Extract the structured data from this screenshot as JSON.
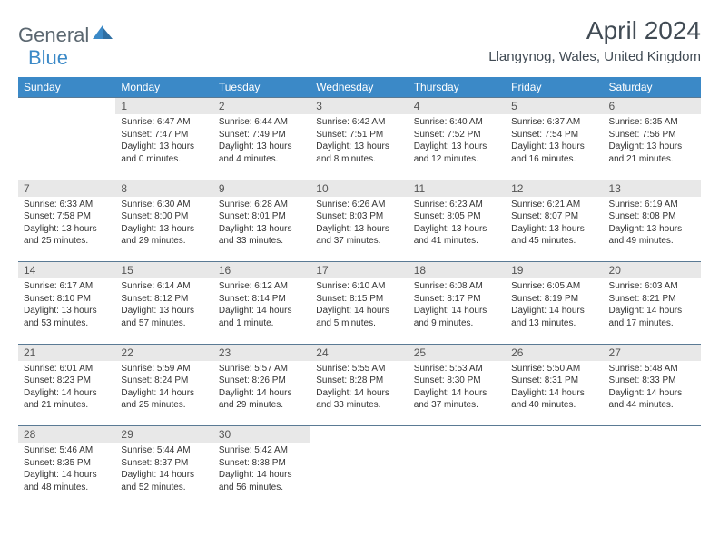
{
  "logo": {
    "part1": "General",
    "part2": "Blue"
  },
  "title": "April 2024",
  "location": "Llangynog, Wales, United Kingdom",
  "colors": {
    "header_bg": "#3b89c7",
    "header_text": "#ffffff",
    "daynum_bg": "#e8e8e8",
    "border": "#5a7a94",
    "logo_gray": "#5b6770",
    "logo_blue": "#3b89c7",
    "title_color": "#414b54"
  },
  "weekdays": [
    "Sunday",
    "Monday",
    "Tuesday",
    "Wednesday",
    "Thursday",
    "Friday",
    "Saturday"
  ],
  "weeks": [
    [
      {
        "n": "",
        "sr": "",
        "ss": "",
        "dl": ""
      },
      {
        "n": "1",
        "sr": "Sunrise: 6:47 AM",
        "ss": "Sunset: 7:47 PM",
        "dl": "Daylight: 13 hours and 0 minutes."
      },
      {
        "n": "2",
        "sr": "Sunrise: 6:44 AM",
        "ss": "Sunset: 7:49 PM",
        "dl": "Daylight: 13 hours and 4 minutes."
      },
      {
        "n": "3",
        "sr": "Sunrise: 6:42 AM",
        "ss": "Sunset: 7:51 PM",
        "dl": "Daylight: 13 hours and 8 minutes."
      },
      {
        "n": "4",
        "sr": "Sunrise: 6:40 AM",
        "ss": "Sunset: 7:52 PM",
        "dl": "Daylight: 13 hours and 12 minutes."
      },
      {
        "n": "5",
        "sr": "Sunrise: 6:37 AM",
        "ss": "Sunset: 7:54 PM",
        "dl": "Daylight: 13 hours and 16 minutes."
      },
      {
        "n": "6",
        "sr": "Sunrise: 6:35 AM",
        "ss": "Sunset: 7:56 PM",
        "dl": "Daylight: 13 hours and 21 minutes."
      }
    ],
    [
      {
        "n": "7",
        "sr": "Sunrise: 6:33 AM",
        "ss": "Sunset: 7:58 PM",
        "dl": "Daylight: 13 hours and 25 minutes."
      },
      {
        "n": "8",
        "sr": "Sunrise: 6:30 AM",
        "ss": "Sunset: 8:00 PM",
        "dl": "Daylight: 13 hours and 29 minutes."
      },
      {
        "n": "9",
        "sr": "Sunrise: 6:28 AM",
        "ss": "Sunset: 8:01 PM",
        "dl": "Daylight: 13 hours and 33 minutes."
      },
      {
        "n": "10",
        "sr": "Sunrise: 6:26 AM",
        "ss": "Sunset: 8:03 PM",
        "dl": "Daylight: 13 hours and 37 minutes."
      },
      {
        "n": "11",
        "sr": "Sunrise: 6:23 AM",
        "ss": "Sunset: 8:05 PM",
        "dl": "Daylight: 13 hours and 41 minutes."
      },
      {
        "n": "12",
        "sr": "Sunrise: 6:21 AM",
        "ss": "Sunset: 8:07 PM",
        "dl": "Daylight: 13 hours and 45 minutes."
      },
      {
        "n": "13",
        "sr": "Sunrise: 6:19 AM",
        "ss": "Sunset: 8:08 PM",
        "dl": "Daylight: 13 hours and 49 minutes."
      }
    ],
    [
      {
        "n": "14",
        "sr": "Sunrise: 6:17 AM",
        "ss": "Sunset: 8:10 PM",
        "dl": "Daylight: 13 hours and 53 minutes."
      },
      {
        "n": "15",
        "sr": "Sunrise: 6:14 AM",
        "ss": "Sunset: 8:12 PM",
        "dl": "Daylight: 13 hours and 57 minutes."
      },
      {
        "n": "16",
        "sr": "Sunrise: 6:12 AM",
        "ss": "Sunset: 8:14 PM",
        "dl": "Daylight: 14 hours and 1 minute."
      },
      {
        "n": "17",
        "sr": "Sunrise: 6:10 AM",
        "ss": "Sunset: 8:15 PM",
        "dl": "Daylight: 14 hours and 5 minutes."
      },
      {
        "n": "18",
        "sr": "Sunrise: 6:08 AM",
        "ss": "Sunset: 8:17 PM",
        "dl": "Daylight: 14 hours and 9 minutes."
      },
      {
        "n": "19",
        "sr": "Sunrise: 6:05 AM",
        "ss": "Sunset: 8:19 PM",
        "dl": "Daylight: 14 hours and 13 minutes."
      },
      {
        "n": "20",
        "sr": "Sunrise: 6:03 AM",
        "ss": "Sunset: 8:21 PM",
        "dl": "Daylight: 14 hours and 17 minutes."
      }
    ],
    [
      {
        "n": "21",
        "sr": "Sunrise: 6:01 AM",
        "ss": "Sunset: 8:23 PM",
        "dl": "Daylight: 14 hours and 21 minutes."
      },
      {
        "n": "22",
        "sr": "Sunrise: 5:59 AM",
        "ss": "Sunset: 8:24 PM",
        "dl": "Daylight: 14 hours and 25 minutes."
      },
      {
        "n": "23",
        "sr": "Sunrise: 5:57 AM",
        "ss": "Sunset: 8:26 PM",
        "dl": "Daylight: 14 hours and 29 minutes."
      },
      {
        "n": "24",
        "sr": "Sunrise: 5:55 AM",
        "ss": "Sunset: 8:28 PM",
        "dl": "Daylight: 14 hours and 33 minutes."
      },
      {
        "n": "25",
        "sr": "Sunrise: 5:53 AM",
        "ss": "Sunset: 8:30 PM",
        "dl": "Daylight: 14 hours and 37 minutes."
      },
      {
        "n": "26",
        "sr": "Sunrise: 5:50 AM",
        "ss": "Sunset: 8:31 PM",
        "dl": "Daylight: 14 hours and 40 minutes."
      },
      {
        "n": "27",
        "sr": "Sunrise: 5:48 AM",
        "ss": "Sunset: 8:33 PM",
        "dl": "Daylight: 14 hours and 44 minutes."
      }
    ],
    [
      {
        "n": "28",
        "sr": "Sunrise: 5:46 AM",
        "ss": "Sunset: 8:35 PM",
        "dl": "Daylight: 14 hours and 48 minutes."
      },
      {
        "n": "29",
        "sr": "Sunrise: 5:44 AM",
        "ss": "Sunset: 8:37 PM",
        "dl": "Daylight: 14 hours and 52 minutes."
      },
      {
        "n": "30",
        "sr": "Sunrise: 5:42 AM",
        "ss": "Sunset: 8:38 PM",
        "dl": "Daylight: 14 hours and 56 minutes."
      },
      {
        "n": "",
        "sr": "",
        "ss": "",
        "dl": ""
      },
      {
        "n": "",
        "sr": "",
        "ss": "",
        "dl": ""
      },
      {
        "n": "",
        "sr": "",
        "ss": "",
        "dl": ""
      },
      {
        "n": "",
        "sr": "",
        "ss": "",
        "dl": ""
      }
    ]
  ]
}
